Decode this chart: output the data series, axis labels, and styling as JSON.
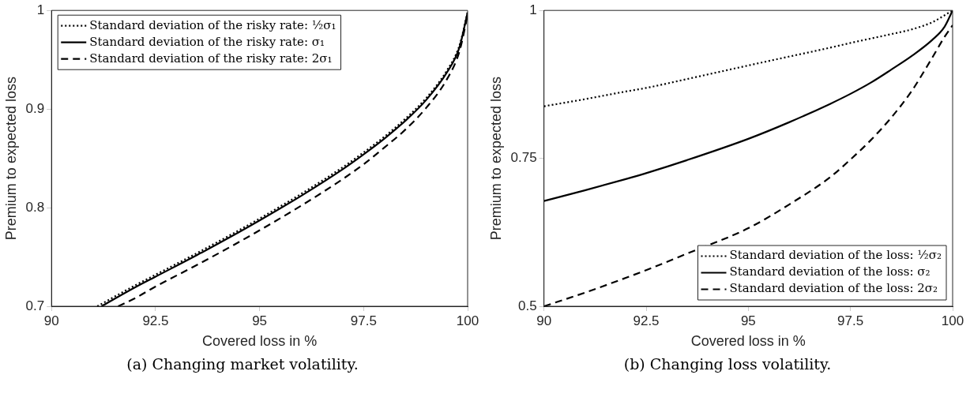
{
  "chart_data": [
    {
      "type": "line",
      "xlabel": "Covered loss in %",
      "ylabel": "Premium to expected loss",
      "annotations": [
        "(a) Changing market volatility."
      ],
      "xlim": [
        90,
        100
      ],
      "xticks": [
        90,
        92.5,
        95,
        97.5,
        100
      ],
      "ylim": [
        0.7,
        1
      ],
      "yticks": [
        0.7,
        0.8,
        0.9,
        1
      ],
      "grid": false,
      "legend": "top left",
      "marker": "none",
      "series": [
        {
          "name": "Standard deviation of the risky rate: ½σ₁",
          "color": "#000000",
          "line_style": "dotted",
          "x": [
            91.1,
            92,
            92.5,
            93.5,
            94.5,
            95,
            96,
            97,
            97.5,
            98,
            98.5,
            99,
            99.5,
            99.8,
            100
          ],
          "values": [
            0.7,
            0.721,
            0.732,
            0.754,
            0.777,
            0.789,
            0.814,
            0.841,
            0.856,
            0.872,
            0.89,
            0.911,
            0.939,
            0.964,
            0.998
          ]
        },
        {
          "name": "Standard deviation of the risky rate: σ₁",
          "color": "#000000",
          "line_style": "solid",
          "x": [
            91.2,
            92,
            92.5,
            93.5,
            94.5,
            95,
            96,
            97,
            97.5,
            98,
            98.5,
            99,
            99.5,
            99.8,
            100
          ],
          "values": [
            0.7,
            0.719,
            0.73,
            0.752,
            0.775,
            0.787,
            0.812,
            0.839,
            0.854,
            0.87,
            0.888,
            0.909,
            0.937,
            0.962,
            0.998
          ]
        },
        {
          "name": "Standard deviation of the risky rate: 2σ₁",
          "color": "#000000",
          "line_style": "dashed",
          "x": [
            91.6,
            92,
            92.5,
            93.5,
            94.5,
            95,
            96,
            97,
            97.5,
            98,
            98.5,
            99,
            99.5,
            99.8,
            100
          ],
          "values": [
            0.7,
            0.708,
            0.72,
            0.742,
            0.765,
            0.777,
            0.802,
            0.829,
            0.844,
            0.861,
            0.879,
            0.901,
            0.93,
            0.958,
            0.995
          ]
        }
      ]
    },
    {
      "type": "line",
      "xlabel": "Covered loss in %",
      "ylabel": "Premium to expected loss",
      "annotations": [
        "(b) Changing loss volatility."
      ],
      "xlim": [
        90,
        100
      ],
      "xticks": [
        90,
        92.5,
        95,
        97.5,
        100
      ],
      "ylim": [
        0.5,
        1
      ],
      "yticks": [
        0.5,
        0.75,
        1
      ],
      "grid": false,
      "legend": "bottom right",
      "marker": "none",
      "series": [
        {
          "name": "Standard deviation of the loss: ½σ₂",
          "color": "#000000",
          "line_style": "dotted",
          "x": [
            90,
            91,
            92,
            92.5,
            93.5,
            95,
            96,
            97,
            97.5,
            98.5,
            99,
            99.5,
            100
          ],
          "values": [
            0.838,
            0.85,
            0.863,
            0.869,
            0.884,
            0.907,
            0.922,
            0.937,
            0.945,
            0.96,
            0.968,
            0.98,
            1.0
          ]
        },
        {
          "name": "Standard deviation of the loss: σ₂",
          "color": "#000000",
          "line_style": "solid",
          "x": [
            90,
            91,
            92,
            92.5,
            93.5,
            95,
            96,
            97,
            97.5,
            98,
            98.5,
            99,
            99.5,
            99.8,
            100
          ],
          "values": [
            0.678,
            0.696,
            0.715,
            0.725,
            0.747,
            0.783,
            0.811,
            0.842,
            0.859,
            0.878,
            0.9,
            0.923,
            0.95,
            0.972,
            1.0
          ]
        },
        {
          "name": "Standard deviation of the loss: 2σ₂",
          "color": "#000000",
          "line_style": "dashed",
          "x": [
            90,
            91,
            92,
            92.5,
            93.5,
            95,
            96,
            97,
            97.5,
            98,
            98.5,
            99,
            99.5,
            99.8,
            100
          ],
          "values": [
            0.5,
            0.523,
            0.548,
            0.561,
            0.589,
            0.632,
            0.672,
            0.718,
            0.748,
            0.781,
            0.819,
            0.864,
            0.92,
            0.955,
            0.975
          ]
        }
      ]
    }
  ]
}
